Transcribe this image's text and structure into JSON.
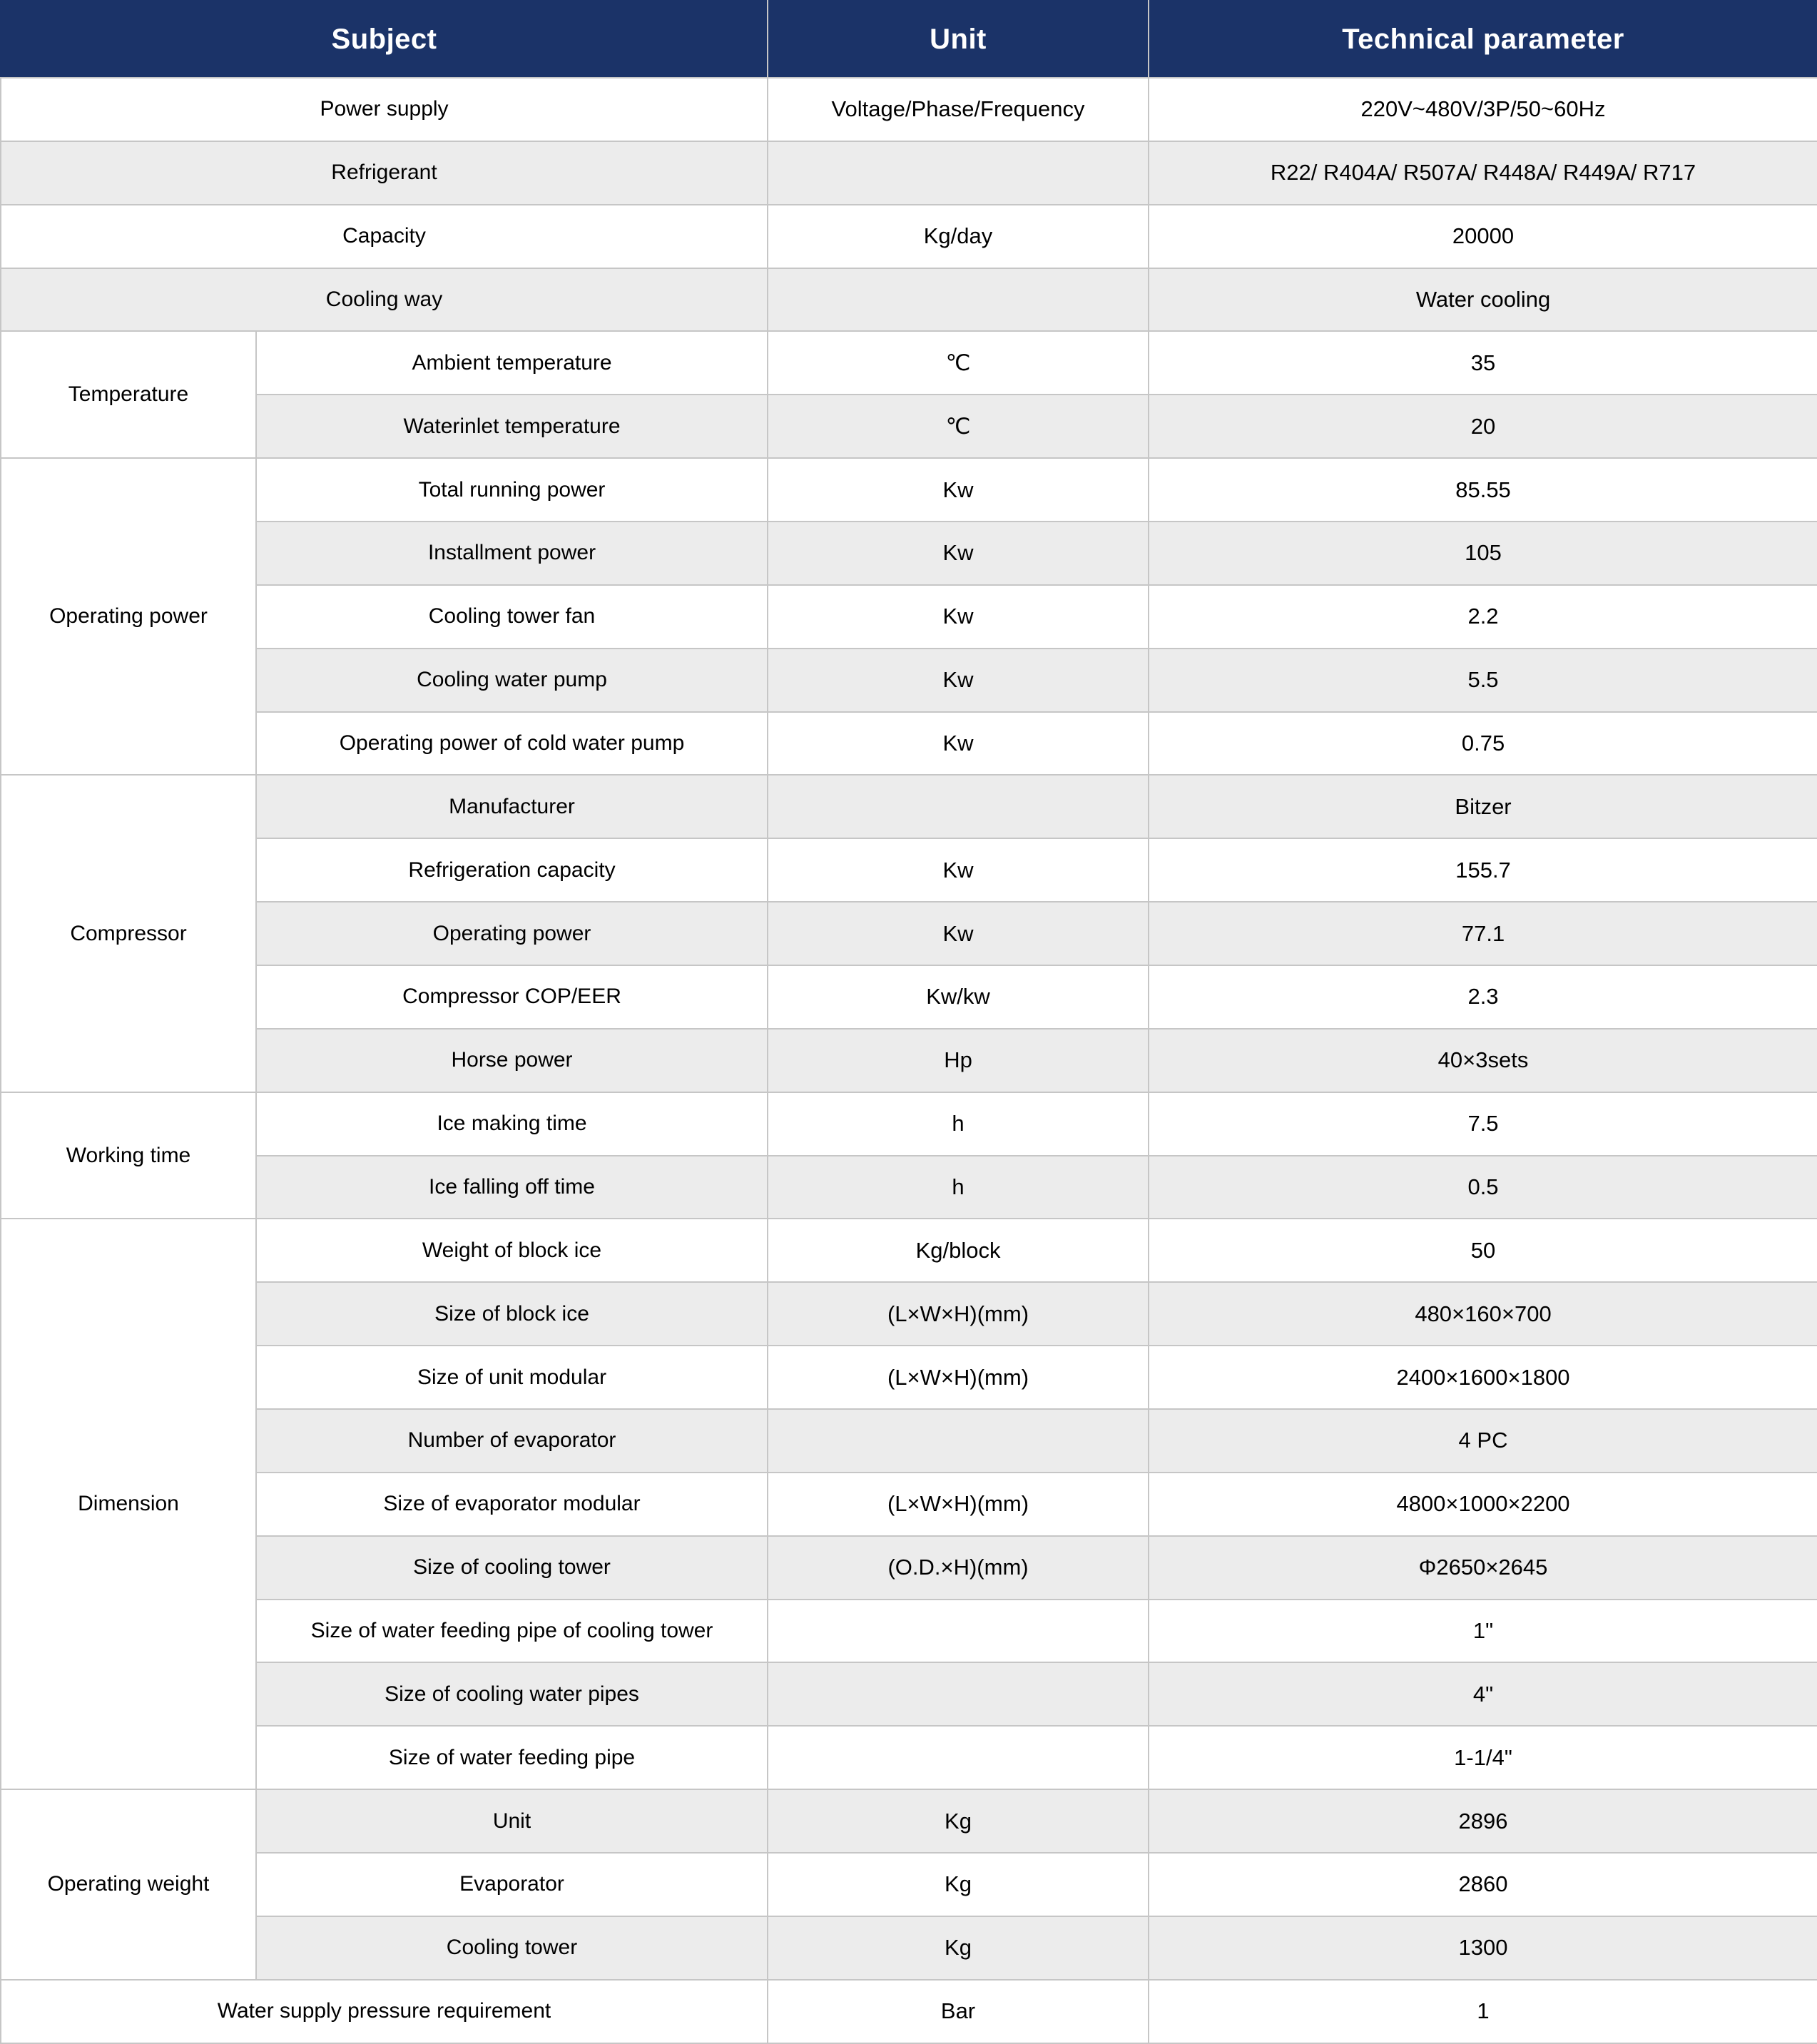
{
  "header": {
    "subject": "Subject",
    "unit": "Unit",
    "tech": "Technical parameter"
  },
  "groups": {
    "temperature": "Temperature",
    "operating_power": "Operating power",
    "compressor": "Compressor",
    "working_time": "Working time",
    "dimension": "Dimension",
    "operating_weight": "Operating weight"
  },
  "rows": [
    {
      "label": "Power supply",
      "unit": "Voltage/Phase/Frequency",
      "value": "220V~480V/3P/50~60Hz"
    },
    {
      "label": "Refrigerant",
      "unit": "",
      "value": "R22/ R404A/ R507A/ R448A/ R449A/ R717"
    },
    {
      "label": "Capacity",
      "unit": "Kg/day",
      "value": "20000"
    },
    {
      "label": "Cooling way",
      "unit": "",
      "value": "Water cooling"
    },
    {
      "label": "Ambient temperature",
      "unit": "℃",
      "value": "35"
    },
    {
      "label": "Waterinlet temperature",
      "unit": "℃",
      "value": "20"
    },
    {
      "label": "Total running power",
      "unit": "Kw",
      "value": "85.55"
    },
    {
      "label": "Installment power",
      "unit": "Kw",
      "value": "105"
    },
    {
      "label": "Cooling tower fan",
      "unit": "Kw",
      "value": "2.2"
    },
    {
      "label": "Cooling water pump",
      "unit": "Kw",
      "value": "5.5"
    },
    {
      "label": "Operating power of cold water pump",
      "unit": "Kw",
      "value": "0.75"
    },
    {
      "label": "Manufacturer",
      "unit": "",
      "value": "Bitzer"
    },
    {
      "label": "Refrigeration capacity",
      "unit": "Kw",
      "value": "155.7"
    },
    {
      "label": "Operating power",
      "unit": "Kw",
      "value": "77.1"
    },
    {
      "label": "Compressor COP/EER",
      "unit": "Kw/kw",
      "value": "2.3"
    },
    {
      "label": "Horse power",
      "unit": "Hp",
      "value": "40×3sets"
    },
    {
      "label": "Ice making time",
      "unit": "h",
      "value": "7.5"
    },
    {
      "label": "Ice falling off time",
      "unit": "h",
      "value": "0.5"
    },
    {
      "label": "Weight of block ice",
      "unit": "Kg/block",
      "value": "50"
    },
    {
      "label": "Size of block ice",
      "unit": "(L×W×H)(mm)",
      "value": "480×160×700"
    },
    {
      "label": "Size of unit modular",
      "unit": "(L×W×H)(mm)",
      "value": "2400×1600×1800"
    },
    {
      "label": "Number of evaporator",
      "unit": "",
      "value": "4 PC"
    },
    {
      "label": "Size of evaporator modular",
      "unit": "(L×W×H)(mm)",
      "value": "4800×1000×2200"
    },
    {
      "label": "Size of cooling tower",
      "unit": "(O.D.×H)(mm)",
      "value": "Φ2650×2645"
    },
    {
      "label": "Size of water feeding pipe of cooling tower",
      "unit": "",
      "value": "1\""
    },
    {
      "label": "Size of cooling water pipes",
      "unit": "",
      "value": "4\""
    },
    {
      "label": "Size of water feeding pipe",
      "unit": "",
      "value": "1-1/4\""
    },
    {
      "label": "Unit",
      "unit": "Kg",
      "value": "2896"
    },
    {
      "label": "Evaporator",
      "unit": "Kg",
      "value": "2860"
    },
    {
      "label": "Cooling tower",
      "unit": "Kg",
      "value": "1300"
    },
    {
      "label": "Water supply pressure requirement",
      "unit": "Bar",
      "value": "1"
    }
  ],
  "colors": {
    "header_bg": "#1b3368",
    "header_text": "#ffffff",
    "row_alt_bg": "#ececec",
    "row_bg": "#ffffff",
    "grid": "#c6c6c6"
  }
}
